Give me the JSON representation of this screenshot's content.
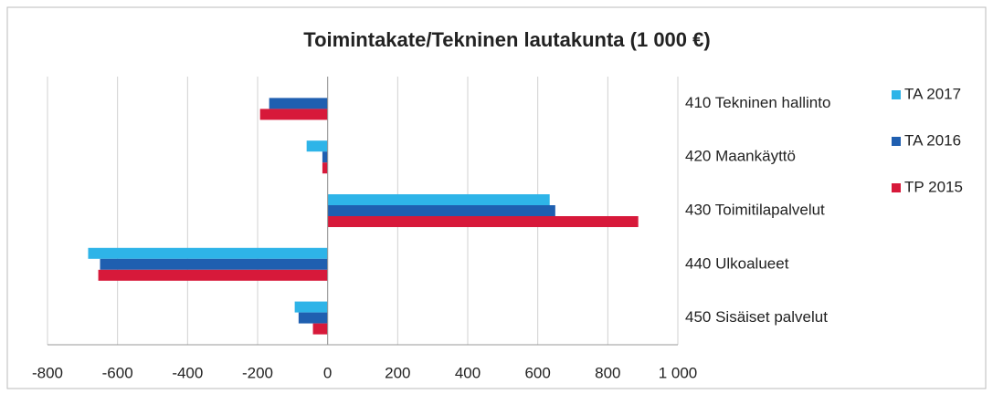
{
  "chart_data": {
    "type": "hbar",
    "title": "Toimintakate/Tekninen lautakunta (1 000 €)",
    "categories": [
      "410 Tekninen hallinto",
      "420 Maankäyttö",
      "430 Toimitilapalvelut",
      "440 Ulkoalueet",
      "450 Sisäiset palvelut"
    ],
    "series": [
      {
        "name": "TA 2017",
        "color": "#2eb4e8",
        "values": [
          0,
          -60,
          634,
          -684,
          -94
        ]
      },
      {
        "name": "TA 2016",
        "color": "#1f5fb0",
        "values": [
          -167,
          -15,
          650,
          -650,
          -83
        ]
      },
      {
        "name": "TP 2015",
        "color": "#d7193a",
        "values": [
          -193,
          -15,
          887,
          -655,
          -42
        ]
      }
    ],
    "xlim": [
      -800,
      1000
    ],
    "xticks": [
      -800,
      -600,
      -400,
      -200,
      0,
      200,
      400,
      600,
      800,
      {
        "value": 1000,
        "label": "1 000"
      }
    ],
    "grid": true,
    "legend": "right"
  }
}
